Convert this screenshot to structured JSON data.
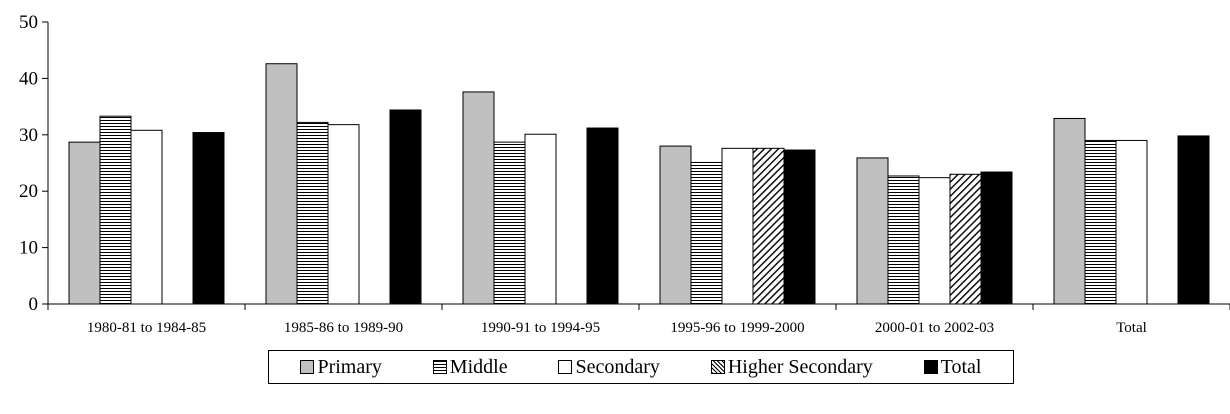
{
  "chart_data": {
    "type": "bar",
    "title": "",
    "xlabel": "",
    "ylabel": "",
    "ylim": [
      0,
      50
    ],
    "yticks": [
      "0",
      "10",
      "20",
      "30",
      "40",
      "50"
    ],
    "categories": [
      "1980-81 to 1984-85",
      "1985-86 to 1989-90",
      "1990-91 to 1994-95",
      "1995-96 to 1999-2000",
      "2000-01 to 2002-03",
      "Total"
    ],
    "series": [
      {
        "name": "Primary",
        "color": "#c0c0c0",
        "pattern": "solid-gray",
        "values": [
          28.7,
          42.6,
          37.6,
          28.0,
          25.9,
          32.9
        ]
      },
      {
        "name": "Middle",
        "color": "#ffffff",
        "pattern": "horizontal-lines",
        "values": [
          33.3,
          32.2,
          28.7,
          25.1,
          22.7,
          29.0
        ]
      },
      {
        "name": "Secondary",
        "color": "#ffffff",
        "pattern": "solid-white",
        "values": [
          30.8,
          31.8,
          30.1,
          27.6,
          22.4,
          29.0
        ]
      },
      {
        "name": "Higher Secondary",
        "color": "#ffffff",
        "pattern": "diagonal-lines",
        "values": [
          null,
          null,
          null,
          27.6,
          23.0,
          null
        ]
      },
      {
        "name": "Total",
        "color": "#000000",
        "pattern": "solid-black",
        "values": [
          30.4,
          34.4,
          31.2,
          27.3,
          23.4,
          29.8
        ]
      }
    ],
    "legend": "bottom",
    "grid": false
  },
  "legend_items": [
    {
      "label": "Primary"
    },
    {
      "label": "Middle"
    },
    {
      "label": "Secondary"
    },
    {
      "label": "Higher Secondary"
    },
    {
      "label": "Total"
    }
  ]
}
